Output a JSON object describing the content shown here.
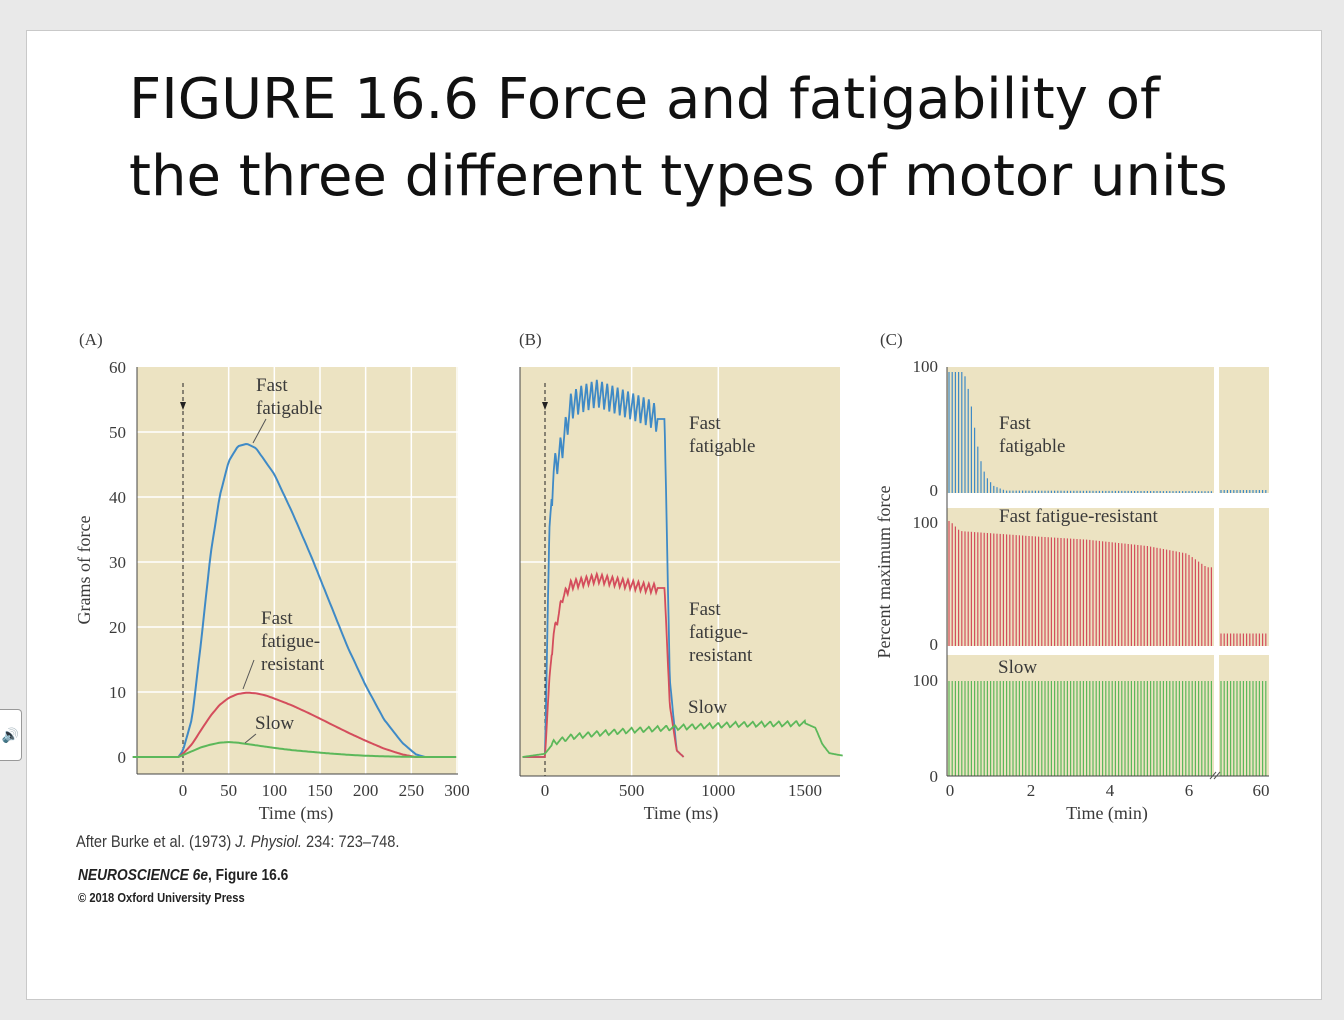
{
  "slide": {
    "title": "FIGURE 16.6  Force and fatigability of the three different types of motor units"
  },
  "audio_button": {
    "icon": "speaker-icon"
  },
  "colors": {
    "panel_bg": "#ece3c2",
    "grid": "#ffffff",
    "fast_fatigable": "#3f8ac6",
    "fast_fatigue_resistant": "#d44d5c",
    "slow": "#5cb85a",
    "axis": "#444444"
  },
  "citation": {
    "source_prefix": "After Burke et al. (1973) ",
    "journal": "J. Physiol.",
    "source_suffix": " 234: 723–748.",
    "book_title": "NEUROSCIENCE 6e",
    "book_figure": ", Figure 16.6",
    "copyright": "© 2018 Oxford University Press"
  },
  "chart_data": [
    {
      "panel": "(A)",
      "type": "line",
      "xlabel": "Time (ms)",
      "ylabel": "Grams of force",
      "xlim": [
        -55,
        300
      ],
      "ylim": [
        0,
        60
      ],
      "x_ticks": [
        0,
        50,
        100,
        150,
        200,
        250,
        300
      ],
      "y_ticks": [
        0,
        10,
        20,
        30,
        40,
        50,
        60
      ],
      "grid": true,
      "stimulus_marker_x": 0,
      "series": [
        {
          "name": "Fast fatigable",
          "color": "#3f8ac6",
          "x": [
            -55,
            -5,
            0,
            10,
            20,
            30,
            40,
            50,
            60,
            70,
            80,
            100,
            120,
            140,
            160,
            180,
            200,
            220,
            240,
            255,
            265,
            275,
            300
          ],
          "y": [
            0,
            0,
            1,
            6,
            18,
            31,
            40,
            45.5,
            47.8,
            48.2,
            47.5,
            43.5,
            37.5,
            31,
            24,
            17,
            11,
            5.8,
            2.2,
            0.4,
            0,
            0,
            0
          ]
        },
        {
          "name": "Fast fatigue-resistant",
          "color": "#d44d5c",
          "x": [
            -55,
            -5,
            0,
            10,
            20,
            30,
            40,
            50,
            60,
            70,
            80,
            90,
            100,
            120,
            140,
            160,
            180,
            200,
            220,
            240,
            255,
            300
          ],
          "y": [
            0,
            0,
            0.5,
            2,
            4.2,
            6.3,
            8,
            9.1,
            9.7,
            9.9,
            9.8,
            9.5,
            9,
            7.9,
            6.6,
            5.2,
            3.8,
            2.5,
            1.3,
            0.4,
            0,
            0
          ]
        },
        {
          "name": "Slow",
          "color": "#5cb85a",
          "x": [
            -55,
            -5,
            0,
            10,
            20,
            30,
            40,
            50,
            60,
            70,
            80,
            100,
            120,
            140,
            160,
            180,
            200,
            220,
            240,
            260,
            300
          ],
          "y": [
            0,
            0,
            0.3,
            0.9,
            1.5,
            1.9,
            2.2,
            2.3,
            2.2,
            2.0,
            1.8,
            1.4,
            1.05,
            0.8,
            0.55,
            0.35,
            0.2,
            0.1,
            0.05,
            0,
            0
          ]
        }
      ],
      "annotations": [
        {
          "lines": [
            "Fast",
            "fatigable"
          ]
        },
        {
          "lines": [
            "Fast",
            "fatigue-",
            "resistant"
          ]
        },
        {
          "lines": [
            "Slow"
          ]
        }
      ]
    },
    {
      "panel": "(B)",
      "type": "line",
      "xlabel": "Time (ms)",
      "ylabel": "",
      "xlim": [
        -130,
        1720
      ],
      "ylim": [
        0,
        60
      ],
      "x_ticks": [
        0,
        500,
        1000,
        1500
      ],
      "y_ticks": [],
      "grid": true,
      "stimulus_marker_x": 0,
      "series": [
        {
          "name": "Fast fatigable",
          "color": "#3f8ac6",
          "x": [
            -130,
            0,
            25,
            50,
            100,
            150,
            200,
            300,
            400,
            500,
            600,
            650,
            690,
            720,
            760,
            800
          ],
          "y": [
            0,
            0,
            35,
            44,
            48,
            54,
            55,
            56,
            55,
            54,
            53,
            52,
            52,
            12,
            1,
            0
          ],
          "ripple_amplitude": 4.5,
          "ripple_period_ms": 30
        },
        {
          "name": "Fast fatigue-resistant",
          "color": "#d44d5c",
          "x": [
            -130,
            0,
            25,
            50,
            75,
            100,
            150,
            300,
            400,
            500,
            600,
            650,
            690,
            720,
            760,
            800
          ],
          "y": [
            0,
            0,
            12,
            19,
            21.5,
            24.5,
            26.5,
            27.5,
            27,
            26.5,
            26,
            26,
            26,
            8,
            1,
            0
          ],
          "ripple_amplitude": 1.5,
          "ripple_period_ms": 30
        },
        {
          "name": "Slow",
          "color": "#5cb85a",
          "x": [
            -130,
            0,
            50,
            150,
            300,
            500,
            800,
            1100,
            1400,
            1500,
            1560,
            1600,
            1640,
            1720
          ],
          "y": [
            0,
            0.5,
            2.2,
            3.1,
            3.6,
            4.1,
            4.6,
            5.0,
            5.1,
            5.2,
            4.5,
            2.0,
            0.6,
            0.2
          ],
          "ripple_amplitude": 0.8,
          "ripple_period_ms": 50
        }
      ],
      "annotations": [
        {
          "lines": [
            "Fast",
            "fatigable"
          ]
        },
        {
          "lines": [
            "Fast",
            "fatigue-",
            "resistant"
          ]
        },
        {
          "lines": [
            "Slow"
          ]
        }
      ]
    },
    {
      "panel": "(C)",
      "type": "bar",
      "xlabel": "Time (min)",
      "ylabel": "Percent maximum force",
      "xlim": [
        0,
        7.9
      ],
      "x_ticks": [
        0,
        2,
        4,
        6
      ],
      "x_break_after": 6.5,
      "x_tick_after_break": 60,
      "grid": false,
      "rows": [
        {
          "name": "Fast fatigable",
          "color": "#3f8ac6",
          "y_ticks": [
            0,
            100
          ],
          "fatigue_profile": [
            [
              0,
              100
            ],
            [
              0.35,
              100
            ],
            [
              0.45,
              88
            ],
            [
              0.55,
              70
            ],
            [
              0.65,
              48
            ],
            [
              0.75,
              30
            ],
            [
              0.9,
              14
            ],
            [
              1.1,
              6
            ],
            [
              1.4,
              2
            ],
            [
              6.5,
              1.5
            ]
          ],
          "after_break_level": 2.5
        },
        {
          "name": "Fast fatigue-resistant",
          "color": "#d44d5c",
          "y_ticks": [
            0,
            100
          ],
          "fatigue_profile": [
            [
              0,
              100
            ],
            [
              0.25,
              92
            ],
            [
              2.0,
              88
            ],
            [
              3.5,
              85
            ],
            [
              5.0,
              80
            ],
            [
              6.0,
              74
            ],
            [
              6.5,
              63
            ]
          ],
          "after_break_level": 10
        },
        {
          "name": "Slow",
          "color": "#5cb85a",
          "y_ticks": [
            0,
            100
          ],
          "fatigue_profile": [
            [
              0,
              100
            ],
            [
              6.5,
              100
            ]
          ],
          "after_break_level": 100
        }
      ],
      "annotations": [
        {
          "lines": [
            "Fast",
            "fatigable"
          ]
        },
        {
          "lines": [
            "Fast fatigue-resistant"
          ]
        },
        {
          "lines": [
            "Slow"
          ]
        }
      ]
    }
  ]
}
